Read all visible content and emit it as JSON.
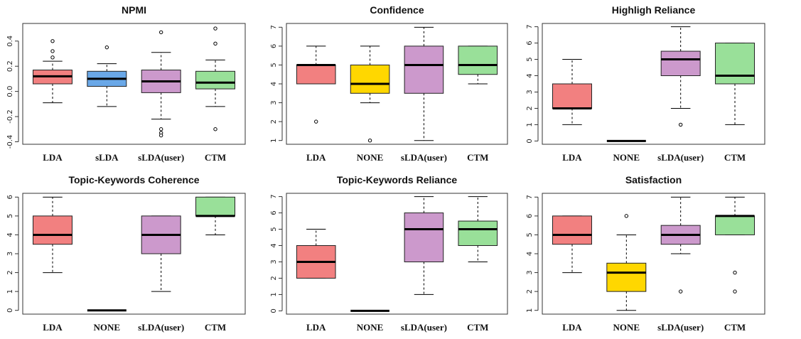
{
  "figure": {
    "description_free": true
  },
  "chart_data": [
    {
      "type": "boxplot",
      "title": "NPMI",
      "categories": [
        "LDA",
        "sLDA",
        "sLDA(user)",
        "CTM"
      ],
      "ylim": [
        -0.42,
        0.54
      ],
      "yticks": [
        -0.4,
        -0.2,
        0.0,
        0.2,
        0.4
      ],
      "ytick_labels": [
        "-0.4",
        "-0.2",
        "0.0",
        "0.2",
        "0.4"
      ],
      "boxes": [
        {
          "color": "#F28080",
          "q1": 0.06,
          "median": 0.12,
          "q3": 0.17,
          "whisker_low": -0.09,
          "whisker_high": 0.24,
          "outliers": [
            0.27,
            0.32,
            0.4
          ]
        },
        {
          "color": "#6AA8E8",
          "q1": 0.04,
          "median": 0.1,
          "q3": 0.16,
          "whisker_low": -0.12,
          "whisker_high": 0.22,
          "outliers": [
            0.35
          ]
        },
        {
          "color": "#CC99CC",
          "q1": -0.01,
          "median": 0.08,
          "q3": 0.17,
          "whisker_low": -0.22,
          "whisker_high": 0.31,
          "outliers": [
            0.47,
            -0.3,
            -0.33,
            -0.35
          ]
        },
        {
          "color": "#99E099",
          "q1": 0.02,
          "median": 0.07,
          "q3": 0.16,
          "whisker_low": -0.12,
          "whisker_high": 0.25,
          "outliers": [
            0.38,
            0.5,
            -0.3
          ]
        }
      ]
    },
    {
      "type": "boxplot",
      "title": "Confidence",
      "categories": [
        "LDA",
        "NONE",
        "sLDA(user)",
        "CTM"
      ],
      "ylim": [
        0.8,
        7.2
      ],
      "yticks": [
        1,
        2,
        3,
        4,
        5,
        6,
        7
      ],
      "ytick_labels": [
        "1",
        "2",
        "3",
        "4",
        "5",
        "6",
        "7"
      ],
      "boxes": [
        {
          "color": "#F28080",
          "q1": 4,
          "median": 5,
          "q3": 5,
          "whisker_low": 4,
          "whisker_high": 6,
          "outliers": [
            2
          ]
        },
        {
          "color": "#FFD700",
          "q1": 3.5,
          "median": 4,
          "q3": 5,
          "whisker_low": 3,
          "whisker_high": 6,
          "outliers": [
            1
          ]
        },
        {
          "color": "#CC99CC",
          "q1": 3.5,
          "median": 5,
          "q3": 6,
          "whisker_low": 1,
          "whisker_high": 7,
          "outliers": []
        },
        {
          "color": "#99E099",
          "q1": 4.5,
          "median": 5,
          "q3": 6,
          "whisker_low": 4,
          "whisker_high": 6,
          "outliers": []
        }
      ]
    },
    {
      "type": "boxplot",
      "title": "Highligh Reliance",
      "categories": [
        "LDA",
        "NONE",
        "sLDA(user)",
        "CTM"
      ],
      "ylim": [
        -0.2,
        7.2
      ],
      "yticks": [
        0,
        1,
        2,
        3,
        4,
        5,
        6,
        7
      ],
      "ytick_labels": [
        "0",
        "1",
        "2",
        "3",
        "4",
        "5",
        "6",
        "7"
      ],
      "boxes": [
        {
          "color": "#F28080",
          "q1": 2,
          "median": 2,
          "q3": 3.5,
          "whisker_low": 1,
          "whisker_high": 5,
          "outliers": []
        },
        {
          "color": "#FFD700",
          "q1": 0,
          "median": 0,
          "q3": 0,
          "whisker_low": 0,
          "whisker_high": 0,
          "outliers": []
        },
        {
          "color": "#CC99CC",
          "q1": 4,
          "median": 5,
          "q3": 5.5,
          "whisker_low": 2,
          "whisker_high": 7,
          "outliers": [
            1
          ]
        },
        {
          "color": "#99E099",
          "q1": 3.5,
          "median": 4,
          "q3": 6,
          "whisker_low": 1,
          "whisker_high": 6,
          "outliers": []
        }
      ]
    },
    {
      "type": "boxplot",
      "title": "Topic-Keywords Coherence",
      "categories": [
        "LDA",
        "NONE",
        "sLDA(user)",
        "CTM"
      ],
      "ylim": [
        -0.2,
        6.2
      ],
      "yticks": [
        0,
        1,
        2,
        3,
        4,
        5,
        6
      ],
      "ytick_labels": [
        "0",
        "1",
        "2",
        "3",
        "4",
        "5",
        "6"
      ],
      "boxes": [
        {
          "color": "#F28080",
          "q1": 3.5,
          "median": 4,
          "q3": 5,
          "whisker_low": 2,
          "whisker_high": 6,
          "outliers": []
        },
        {
          "color": "#FFD700",
          "q1": 0,
          "median": 0,
          "q3": 0,
          "whisker_low": 0,
          "whisker_high": 0,
          "outliers": []
        },
        {
          "color": "#CC99CC",
          "q1": 3,
          "median": 4,
          "q3": 5,
          "whisker_low": 1,
          "whisker_high": 5,
          "outliers": []
        },
        {
          "color": "#99E099",
          "q1": 5,
          "median": 5,
          "q3": 6,
          "whisker_low": 4,
          "whisker_high": 6,
          "outliers": []
        }
      ]
    },
    {
      "type": "boxplot",
      "title": "Topic-Keywords Reliance",
      "categories": [
        "LDA",
        "NONE",
        "sLDA(user)",
        "CTM"
      ],
      "ylim": [
        -0.2,
        7.2
      ],
      "yticks": [
        0,
        1,
        2,
        3,
        4,
        5,
        6,
        7
      ],
      "ytick_labels": [
        "0",
        "1",
        "2",
        "3",
        "4",
        "5",
        "6",
        "7"
      ],
      "boxes": [
        {
          "color": "#F28080",
          "q1": 2,
          "median": 3,
          "q3": 4,
          "whisker_low": 2,
          "whisker_high": 5,
          "outliers": []
        },
        {
          "color": "#FFD700",
          "q1": 0,
          "median": 0,
          "q3": 0,
          "whisker_low": 0,
          "whisker_high": 0,
          "outliers": []
        },
        {
          "color": "#CC99CC",
          "q1": 3,
          "median": 5,
          "q3": 6,
          "whisker_low": 1,
          "whisker_high": 7,
          "outliers": []
        },
        {
          "color": "#99E099",
          "q1": 4,
          "median": 5,
          "q3": 5.5,
          "whisker_low": 3,
          "whisker_high": 7,
          "outliers": []
        }
      ]
    },
    {
      "type": "boxplot",
      "title": "Satisfaction",
      "categories": [
        "LDA",
        "NONE",
        "sLDA(user)",
        "CTM"
      ],
      "ylim": [
        0.8,
        7.2
      ],
      "yticks": [
        1,
        2,
        3,
        4,
        5,
        6,
        7
      ],
      "ytick_labels": [
        "1",
        "2",
        "3",
        "4",
        "5",
        "6",
        "7"
      ],
      "boxes": [
        {
          "color": "#F28080",
          "q1": 4.5,
          "median": 5,
          "q3": 6,
          "whisker_low": 3,
          "whisker_high": 6,
          "outliers": []
        },
        {
          "color": "#FFD700",
          "q1": 2,
          "median": 3,
          "q3": 3.5,
          "whisker_low": 1,
          "whisker_high": 5,
          "outliers": [
            6
          ]
        },
        {
          "color": "#CC99CC",
          "q1": 4.5,
          "median": 5,
          "q3": 5.5,
          "whisker_low": 4,
          "whisker_high": 7,
          "outliers": [
            2
          ]
        },
        {
          "color": "#99E099",
          "q1": 5,
          "median": 6,
          "q3": 6,
          "whisker_low": 5,
          "whisker_high": 7,
          "outliers": [
            3,
            2
          ]
        }
      ]
    }
  ]
}
